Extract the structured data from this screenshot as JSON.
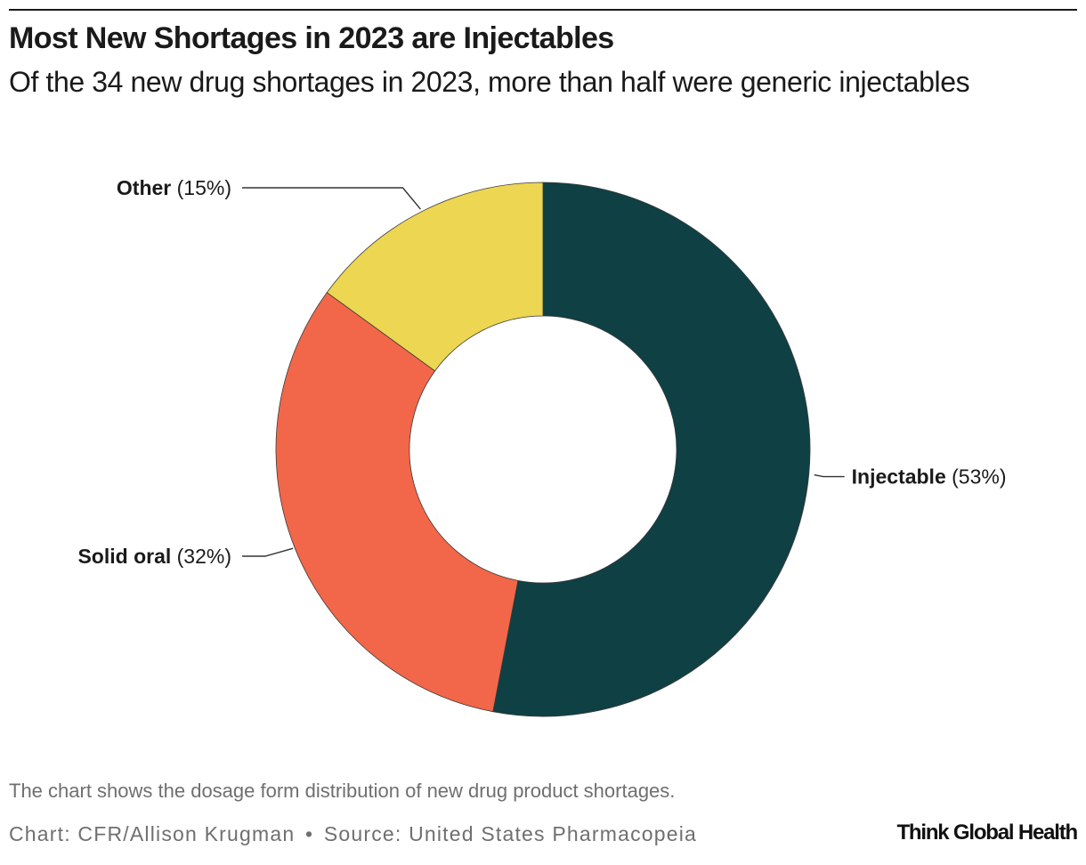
{
  "header": {
    "title": "Most New Shortages in 2023 are Injectables",
    "subtitle": "Of the 34 new drug shortages in 2023, more than half were generic injectables"
  },
  "chart_data": {
    "type": "pie",
    "donut": true,
    "slices": [
      {
        "label": "Injectable",
        "value": 53,
        "display": "(53%)",
        "color": "#0e4044"
      },
      {
        "label": "Solid oral",
        "value": 32,
        "display": "(32%)",
        "color": "#f26749"
      },
      {
        "label": "Other",
        "value": 15,
        "display": "(15%)",
        "color": "#ecd652"
      }
    ],
    "unit": "%",
    "legend": "none"
  },
  "footer": {
    "note": "The chart shows the dosage form distribution of new drug product shortages.",
    "credit_chart": "Chart: CFR/Allison Krugman",
    "separator": "•",
    "credit_source": "Source: United States Pharmacopeia",
    "logo": "Think Global Health"
  }
}
